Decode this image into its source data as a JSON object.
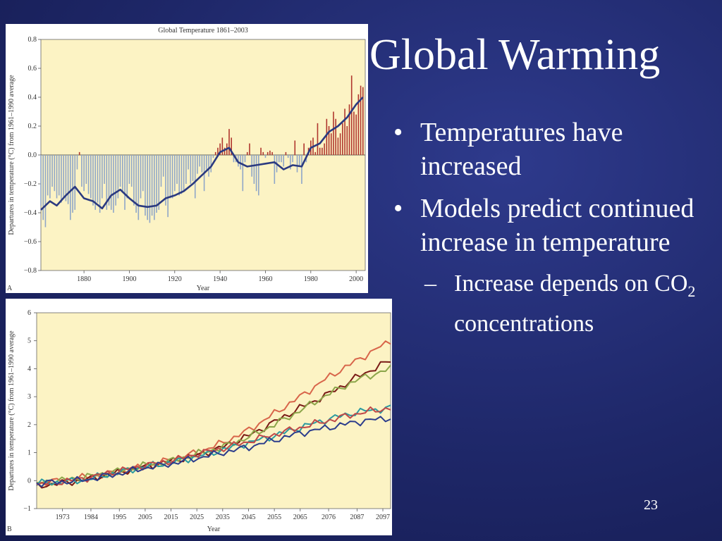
{
  "slide": {
    "title": "Global Warming",
    "bullets": [
      "Temperatures have increased",
      "Models predict continued increase in temperature"
    ],
    "sub_bullet_prefix": "Increase depends on",
    "sub_bullet_co2": "CO",
    "sub_bullet_sub": "2",
    "sub_bullet_suffix": " concentrations",
    "bullet_glyph": "•",
    "dash_glyph": "–",
    "slide_number": "23"
  },
  "colors": {
    "background": "#1e2768",
    "plot_bg": "#fcf3c4",
    "bar_negative": "#8fa6c8",
    "bar_positive": "#b0362e",
    "smooth_line": "#2b3a80"
  },
  "chart_data": [
    {
      "type": "bar",
      "panel_letter": "A",
      "title": "Global Temperature 1861–2003",
      "xlabel": "Year",
      "ylabel": "Departures in temperature (°C) from 1961–1990 average",
      "xlim": [
        1861,
        2004
      ],
      "ylim": [
        -0.8,
        0.8
      ],
      "x_ticks": [
        1880,
        1900,
        1920,
        1940,
        1960,
        1980,
        2000
      ],
      "y_ticks": [
        -0.8,
        -0.6,
        -0.4,
        -0.2,
        0.0,
        0.2,
        0.4,
        0.6,
        0.8
      ],
      "y_tick_labels": [
        "−0.8",
        "−0.6",
        "−0.4",
        "−0.2",
        "0.0",
        "0.2",
        "0.4",
        "0.6",
        "0.8"
      ],
      "x_tick_labels": [
        "1880",
        "1900",
        "1920",
        "1940",
        "1960",
        "1980",
        "2000"
      ],
      "years": [
        1861,
        1862,
        1863,
        1864,
        1865,
        1866,
        1867,
        1868,
        1869,
        1870,
        1871,
        1872,
        1873,
        1874,
        1875,
        1876,
        1877,
        1878,
        1879,
        1880,
        1881,
        1882,
        1883,
        1884,
        1885,
        1886,
        1887,
        1888,
        1889,
        1890,
        1891,
        1892,
        1893,
        1894,
        1895,
        1896,
        1897,
        1898,
        1899,
        1900,
        1901,
        1902,
        1903,
        1904,
        1905,
        1906,
        1907,
        1908,
        1909,
        1910,
        1911,
        1912,
        1913,
        1914,
        1915,
        1916,
        1917,
        1918,
        1919,
        1920,
        1921,
        1922,
        1923,
        1924,
        1925,
        1926,
        1927,
        1928,
        1929,
        1930,
        1931,
        1932,
        1933,
        1934,
        1935,
        1936,
        1937,
        1938,
        1939,
        1940,
        1941,
        1942,
        1943,
        1944,
        1945,
        1946,
        1947,
        1948,
        1949,
        1950,
        1951,
        1952,
        1953,
        1954,
        1955,
        1956,
        1957,
        1958,
        1959,
        1960,
        1961,
        1962,
        1963,
        1964,
        1965,
        1966,
        1967,
        1968,
        1969,
        1970,
        1971,
        1972,
        1973,
        1974,
        1975,
        1976,
        1977,
        1978,
        1979,
        1980,
        1981,
        1982,
        1983,
        1984,
        1985,
        1986,
        1987,
        1988,
        1989,
        1990,
        1991,
        1992,
        1993,
        1994,
        1995,
        1996,
        1997,
        1998,
        1999,
        2000,
        2001,
        2002,
        2003
      ],
      "anomalies": [
        -0.35,
        -0.45,
        -0.5,
        -0.28,
        -0.3,
        -0.22,
        -0.25,
        -0.3,
        -0.28,
        -0.33,
        -0.3,
        -0.32,
        -0.34,
        -0.45,
        -0.4,
        -0.38,
        -0.1,
        0.02,
        -0.22,
        -0.25,
        -0.2,
        -0.27,
        -0.3,
        -0.35,
        -0.38,
        -0.33,
        -0.4,
        -0.3,
        -0.2,
        -0.38,
        -0.35,
        -0.38,
        -0.4,
        -0.35,
        -0.3,
        -0.22,
        -0.25,
        -0.38,
        -0.3,
        -0.2,
        -0.22,
        -0.35,
        -0.4,
        -0.45,
        -0.3,
        -0.25,
        -0.42,
        -0.45,
        -0.47,
        -0.42,
        -0.45,
        -0.4,
        -0.38,
        -0.22,
        -0.15,
        -0.35,
        -0.43,
        -0.3,
        -0.3,
        -0.25,
        -0.2,
        -0.28,
        -0.27,
        -0.25,
        -0.2,
        -0.1,
        -0.2,
        -0.18,
        -0.3,
        -0.13,
        -0.08,
        -0.12,
        -0.25,
        -0.1,
        -0.15,
        -0.12,
        -0.02,
        0.02,
        0.05,
        0.08,
        0.12,
        0.05,
        0.08,
        0.18,
        0.12,
        -0.05,
        -0.05,
        -0.08,
        -0.1,
        -0.25,
        -0.05,
        0.02,
        0.08,
        -0.15,
        -0.2,
        -0.25,
        -0.28,
        0.05,
        0.02,
        -0.02,
        0.02,
        0.03,
        0.02,
        -0.2,
        -0.12,
        -0.05,
        -0.05,
        -0.08,
        0.02,
        -0.02,
        -0.1,
        -0.05,
        0.1,
        -0.12,
        -0.08,
        -0.2,
        0.08,
        -0.05,
        0.05,
        0.1,
        0.12,
        0.02,
        0.22,
        0.05,
        0.05,
        0.08,
        0.25,
        0.2,
        0.15,
        0.3,
        0.25,
        0.12,
        0.15,
        0.22,
        0.32,
        0.2,
        0.35,
        0.55,
        0.3,
        0.28,
        0.42,
        0.48,
        0.47
      ],
      "smoothed_years": [
        1861,
        1865,
        1868,
        1872,
        1876,
        1880,
        1884,
        1888,
        1892,
        1896,
        1900,
        1904,
        1908,
        1912,
        1916,
        1920,
        1924,
        1928,
        1932,
        1936,
        1940,
        1944,
        1948,
        1952,
        1956,
        1960,
        1964,
        1968,
        1972,
        1976,
        1980,
        1984,
        1988,
        1992,
        1996,
        2000,
        2003
      ],
      "smoothed_values": [
        -0.38,
        -0.32,
        -0.35,
        -0.28,
        -0.22,
        -0.3,
        -0.32,
        -0.37,
        -0.28,
        -0.24,
        -0.3,
        -0.35,
        -0.36,
        -0.35,
        -0.3,
        -0.28,
        -0.25,
        -0.2,
        -0.14,
        -0.08,
        0.02,
        0.05,
        -0.05,
        -0.08,
        -0.07,
        -0.06,
        -0.05,
        -0.1,
        -0.07,
        -0.08,
        0.05,
        0.08,
        0.16,
        0.2,
        0.26,
        0.35,
        0.4
      ]
    },
    {
      "type": "line",
      "panel_letter": "B",
      "xlabel": "Year",
      "ylabel": "Departures in temperature (°C) from 1961–1990 average",
      "x_tick_labels": [
        "1973",
        "1984",
        "1995",
        "2005",
        "2015",
        "2025",
        "2035",
        "2045",
        "2055",
        "2065",
        "2076",
        "2087",
        "2097"
      ],
      "x_ticks": [
        1973,
        1984,
        1995,
        2005,
        2015,
        2025,
        2035,
        2045,
        2055,
        2065,
        2076,
        2087,
        2097
      ],
      "xlim": [
        1963,
        2100
      ],
      "ylim": [
        -1,
        6
      ],
      "y_ticks": [
        -1,
        0,
        1,
        2,
        3,
        4,
        5,
        6
      ],
      "y_tick_labels": [
        "−1",
        "0",
        "1",
        "2",
        "3",
        "4",
        "5",
        "6"
      ],
      "series": [
        {
          "color": "#d8654a",
          "x": [
            1963,
            1980,
            1995,
            2005,
            2015,
            2025,
            2035,
            2045,
            2055,
            2065,
            2076,
            2087,
            2100
          ],
          "y": [
            -0.1,
            0.1,
            0.3,
            0.5,
            0.75,
            1.0,
            1.35,
            1.8,
            2.4,
            3.0,
            3.7,
            4.3,
            5.0
          ]
        },
        {
          "color": "#7a1a16",
          "x": [
            1963,
            1980,
            1995,
            2005,
            2015,
            2025,
            2035,
            2045,
            2055,
            2065,
            2076,
            2087,
            2100
          ],
          "y": [
            -0.2,
            0.0,
            0.3,
            0.5,
            0.7,
            0.9,
            1.2,
            1.6,
            2.1,
            2.6,
            3.1,
            3.7,
            4.3
          ]
        },
        {
          "color": "#8ca64a",
          "x": [
            1963,
            1980,
            1995,
            2005,
            2015,
            2025,
            2035,
            2045,
            2055,
            2065,
            2076,
            2087,
            2100
          ],
          "y": [
            -0.1,
            0.1,
            0.35,
            0.55,
            0.7,
            0.95,
            1.2,
            1.55,
            2.0,
            2.5,
            3.1,
            3.6,
            4.0
          ]
        },
        {
          "color": "#2a9aa0",
          "x": [
            1963,
            1980,
            1995,
            2005,
            2015,
            2025,
            2035,
            2045,
            2055,
            2065,
            2076,
            2087,
            2100
          ],
          "y": [
            -0.1,
            0.0,
            0.3,
            0.5,
            0.65,
            0.85,
            1.1,
            1.35,
            1.6,
            1.9,
            2.2,
            2.45,
            2.6
          ]
        },
        {
          "color": "#c04848",
          "x": [
            1963,
            1980,
            1995,
            2005,
            2015,
            2025,
            2035,
            2045,
            2055,
            2065,
            2076,
            2087,
            2100
          ],
          "y": [
            -0.15,
            0.05,
            0.35,
            0.55,
            0.7,
            0.95,
            1.15,
            1.4,
            1.65,
            1.9,
            2.15,
            2.4,
            2.6
          ]
        },
        {
          "color": "#2c3d8c",
          "x": [
            1963,
            1980,
            1995,
            2005,
            2015,
            2025,
            2035,
            2045,
            2055,
            2065,
            2076,
            2087,
            2100
          ],
          "y": [
            -0.1,
            0.0,
            0.25,
            0.45,
            0.6,
            0.8,
            1.0,
            1.2,
            1.45,
            1.7,
            1.9,
            2.1,
            2.25
          ]
        }
      ]
    }
  ]
}
